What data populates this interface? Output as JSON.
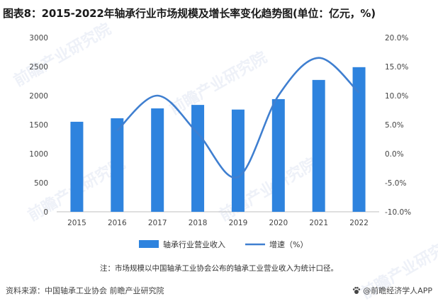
{
  "title": "图表8：2015-2022年轴承行业市场规模及增长率变化趋势图(单位：亿元，%)",
  "chart_data": {
    "type": "bar",
    "categories": [
      "2015",
      "2016",
      "2017",
      "2018",
      "2019",
      "2020",
      "2021",
      "2022"
    ],
    "series": [
      {
        "name": "轴承行业营业收入",
        "type": "bar",
        "axis": "left",
        "values": [
          1550,
          1610,
          1780,
          1840,
          1760,
          1940,
          2270,
          2490
        ]
      },
      {
        "name": "增速（%）",
        "type": "line",
        "axis": "right",
        "smooth": true,
        "values": [
          null,
          4.0,
          10.0,
          3.5,
          -4.0,
          10.0,
          16.5,
          10.5
        ]
      }
    ],
    "y_left": {
      "min": 0,
      "max": 3000,
      "step": 500,
      "ticks": [
        "0",
        "500",
        "1000",
        "1500",
        "2000",
        "2500",
        "3000"
      ]
    },
    "y_right": {
      "min": -10,
      "max": 20,
      "step": 5,
      "ticks": [
        "-10.0%",
        "-5.0%",
        "0.0%",
        "5.0%",
        "10.0%",
        "15.0%",
        "20.0%"
      ]
    },
    "grid": false,
    "legend": "bottom-center"
  },
  "colors": {
    "bar": "#2e83de",
    "line": "#3f7fd0"
  },
  "note": "注：市场规模以中国轴承工业协会公布的轴承工业营业收入为统计口径。",
  "source": "资料来源：中国轴承工业协会 前瞻产业研究院",
  "brand": "@前瞻经济学人APP",
  "brand_icon": "paw-icon",
  "watermark": "前瞻产业研究院"
}
